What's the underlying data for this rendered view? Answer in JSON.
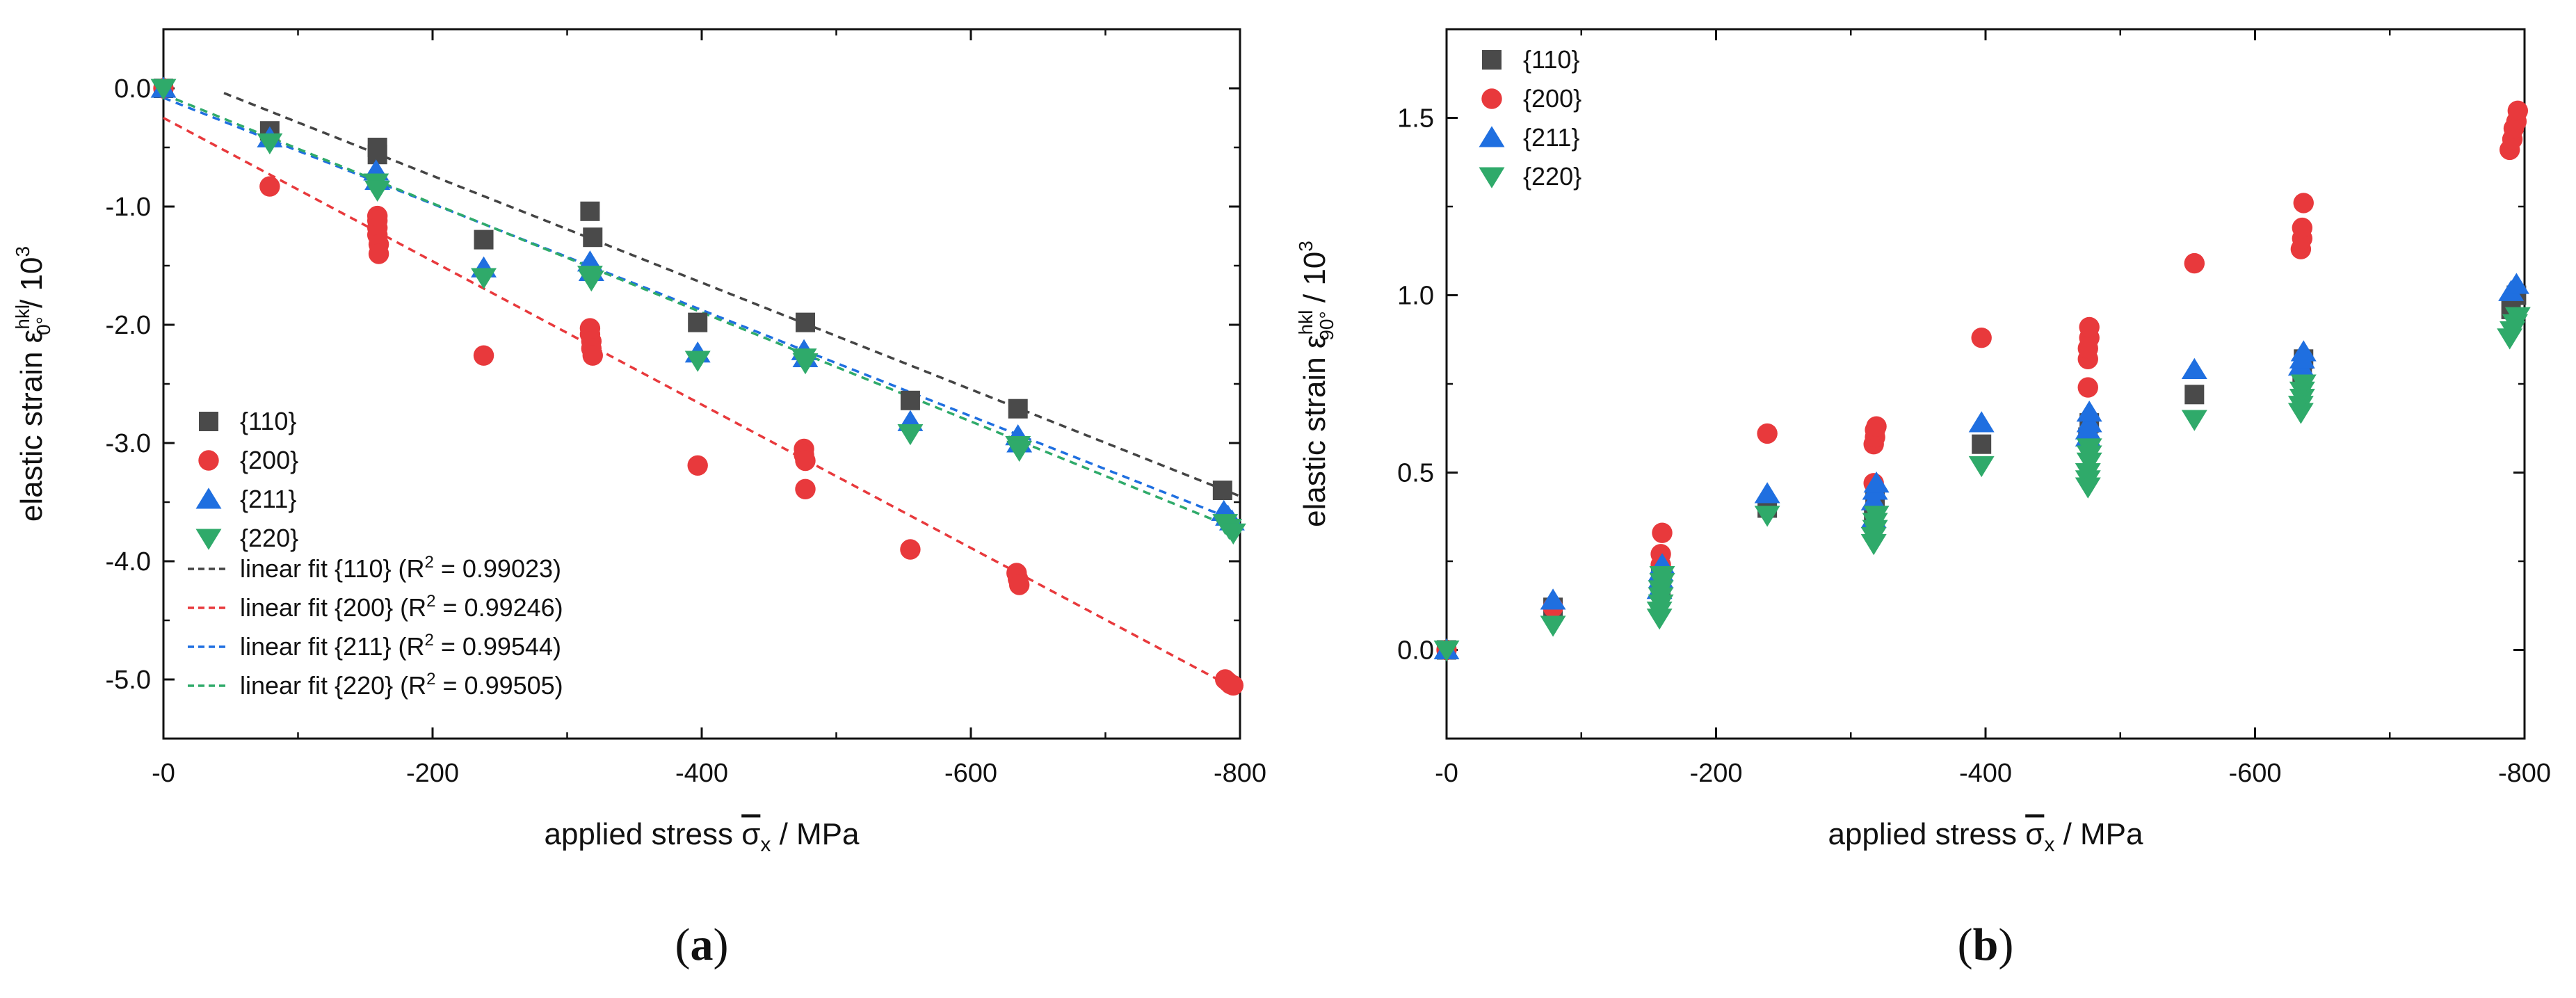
{
  "colors": {
    "s110": "#4a4a4a",
    "s200": "#e8393c",
    "s211": "#1f6fe0",
    "s220": "#2faa6a",
    "fit110": "#444444",
    "fit200": "#e8393c",
    "fit211": "#1f6fe0",
    "fit220": "#2faa6a"
  },
  "chart_data": [
    {
      "type": "scatter",
      "panel": "a",
      "panel_label": "a",
      "title": "",
      "xlabel": {
        "pre": "applied stress ",
        "sym": "σ",
        "sub": "x",
        "post": " / MPa"
      },
      "ylabel": {
        "pre": "elastic strain ε",
        "sup": "hkl",
        "sub": "0°",
        "post": " / 10",
        "exp": "3"
      },
      "xlim": [
        0,
        -800
      ],
      "ylim": [
        -5.5,
        0.5
      ],
      "xticks": [
        0,
        -200,
        -400,
        -600,
        -800
      ],
      "xtick_labels": [
        "-0",
        "-200",
        "-400",
        "-600",
        "-800"
      ],
      "yticks": [
        0,
        -1,
        -2,
        -3,
        -4,
        -5
      ],
      "ytick_labels": [
        "0.0",
        "-1.0",
        "-2.0",
        "-3.0",
        "-4.0",
        "-5.0"
      ],
      "legend_position": "lower-left",
      "series": [
        {
          "name": "{110}",
          "marker": "square",
          "color_key": "s110",
          "points": [
            [
              0,
              0
            ],
            [
              -79,
              -0.36
            ],
            [
              -159,
              -0.5
            ],
            [
              -159,
              -0.56
            ],
            [
              -238,
              -1.28
            ],
            [
              -317,
              -1.04
            ],
            [
              -319,
              -1.26
            ],
            [
              -397,
              -1.98
            ],
            [
              -477,
              -1.98
            ],
            [
              -555,
              -2.64
            ],
            [
              -635,
              -2.71
            ],
            [
              -787,
              -3.4
            ]
          ]
        },
        {
          "name": "{200}",
          "marker": "circle",
          "color_key": "s200",
          "points": [
            [
              0,
              0
            ],
            [
              -79,
              -0.83
            ],
            [
              -159,
              -1.08
            ],
            [
              -159,
              -1.12
            ],
            [
              -159,
              -1.18
            ],
            [
              -159,
              -1.24
            ],
            [
              -160,
              -1.32
            ],
            [
              -160,
              -1.4
            ],
            [
              -238,
              -2.26
            ],
            [
              -317,
              -2.03
            ],
            [
              -317,
              -2.08
            ],
            [
              -318,
              -2.14
            ],
            [
              -318,
              -2.2
            ],
            [
              -319,
              -2.26
            ],
            [
              -397,
              -3.19
            ],
            [
              -476,
              -3.05
            ],
            [
              -476,
              -3.1
            ],
            [
              -477,
              -3.15
            ],
            [
              -477,
              -3.39
            ],
            [
              -555,
              -3.9
            ],
            [
              -634,
              -4.1
            ],
            [
              -635,
              -4.15
            ],
            [
              -636,
              -4.2
            ],
            [
              -789,
              -5.0
            ],
            [
              -791,
              -5.02
            ],
            [
              -793,
              -5.04
            ],
            [
              -795,
              -5.05
            ]
          ]
        },
        {
          "name": "{211}",
          "marker": "triangle-up",
          "color_key": "s211",
          "points": [
            [
              0,
              0
            ],
            [
              -79,
              -0.42
            ],
            [
              -158,
              -0.7
            ],
            [
              -159,
              -0.78
            ],
            [
              -238,
              -1.52
            ],
            [
              -317,
              -1.47
            ],
            [
              -318,
              -1.55
            ],
            [
              -397,
              -2.24
            ],
            [
              -476,
              -2.22
            ],
            [
              -477,
              -2.28
            ],
            [
              -555,
              -2.82
            ],
            [
              -635,
              -2.94
            ],
            [
              -636,
              -3.0
            ],
            [
              -788,
              -3.58
            ],
            [
              -791,
              -3.62
            ],
            [
              -794,
              -3.66
            ]
          ]
        },
        {
          "name": "{220}",
          "marker": "triangle-down",
          "color_key": "s220",
          "points": [
            [
              0,
              0
            ],
            [
              -79,
              -0.46
            ],
            [
              -158,
              -0.8
            ],
            [
              -159,
              -0.86
            ],
            [
              -238,
              -1.6
            ],
            [
              -317,
              -1.58
            ],
            [
              -318,
              -1.62
            ],
            [
              -397,
              -2.3
            ],
            [
              -476,
              -2.28
            ],
            [
              -477,
              -2.32
            ],
            [
              -555,
              -2.92
            ],
            [
              -635,
              -3.02
            ],
            [
              -636,
              -3.06
            ],
            [
              -789,
              -3.68
            ],
            [
              -792,
              -3.72
            ],
            [
              -795,
              -3.76
            ]
          ]
        }
      ],
      "fits": [
        {
          "label": "linear fit {110} (R",
          "sup": "2",
          "tail": " = 0.99023)",
          "color_key": "fit110",
          "x0": -45,
          "y0": -0.04,
          "x1": -800,
          "y1": -3.45
        },
        {
          "label": "linear fit {200} (R",
          "sup": "2",
          "tail": " = 0.99246)",
          "color_key": "fit200",
          "x0": 0,
          "y0": -0.25,
          "x1": -800,
          "y1": -5.1
        },
        {
          "label": "linear fit {211} (R",
          "sup": "2",
          "tail": " = 0.99544)",
          "color_key": "fit211",
          "x0": 0,
          "y0": -0.08,
          "x1": -800,
          "y1": -3.67
        },
        {
          "label": "linear fit {220} (R",
          "sup": "2",
          "tail": " = 0.99505)",
          "color_key": "fit220",
          "x0": 0,
          "y0": -0.05,
          "x1": -800,
          "y1": -3.74
        }
      ]
    },
    {
      "type": "scatter",
      "panel": "b",
      "panel_label": "b",
      "title": "",
      "xlabel": {
        "pre": "applied stress ",
        "sym": "σ",
        "sub": "x",
        "post": " / MPa"
      },
      "ylabel": {
        "pre": "elastic strain ε",
        "sup": "hkl",
        "sub": "90°",
        "post": " / 10",
        "exp": "3"
      },
      "xlim": [
        0,
        -800
      ],
      "ylim": [
        -0.25,
        1.75
      ],
      "xticks": [
        0,
        -200,
        -400,
        -600,
        -800
      ],
      "xtick_labels": [
        "-0",
        "-200",
        "-400",
        "-600",
        "-800"
      ],
      "yticks": [
        0,
        0.5,
        1.0,
        1.5
      ],
      "ytick_labels": [
        "0.0",
        "0.5",
        "1.0",
        "1.5"
      ],
      "legend_position": "top-left",
      "series": [
        {
          "name": "{110}",
          "marker": "square",
          "color_key": "s110",
          "points": [
            [
              0,
              0
            ],
            [
              -79,
              0.12
            ],
            [
              -159,
              0.18
            ],
            [
              -159,
              0.22
            ],
            [
              -238,
              0.4
            ],
            [
              -317,
              0.38
            ],
            [
              -318,
              0.42
            ],
            [
              -397,
              0.58
            ],
            [
              -476,
              0.6
            ],
            [
              -477,
              0.64
            ],
            [
              -555,
              0.72
            ],
            [
              -635,
              0.78
            ],
            [
              -636,
              0.82
            ],
            [
              -790,
              0.96
            ],
            [
              -794,
              1.0
            ]
          ]
        },
        {
          "name": "{200}",
          "marker": "circle",
          "color_key": "s200",
          "points": [
            [
              0,
              0
            ],
            [
              -79,
              0.12
            ],
            [
              -159,
              0.2
            ],
            [
              -159,
              0.24
            ],
            [
              -159,
              0.27
            ],
            [
              -160,
              0.33
            ],
            [
              -238,
              0.61
            ],
            [
              -317,
              0.47
            ],
            [
              -317,
              0.58
            ],
            [
              -318,
              0.6
            ],
            [
              -318,
              0.62
            ],
            [
              -319,
              0.63
            ],
            [
              -397,
              0.88
            ],
            [
              -476,
              0.74
            ],
            [
              -476,
              0.82
            ],
            [
              -476,
              0.85
            ],
            [
              -477,
              0.88
            ],
            [
              -477,
              0.91
            ],
            [
              -555,
              1.09
            ],
            [
              -634,
              1.13
            ],
            [
              -635,
              1.16
            ],
            [
              -635,
              1.19
            ],
            [
              -636,
              1.26
            ],
            [
              -789,
              1.41
            ],
            [
              -791,
              1.44
            ],
            [
              -792,
              1.47
            ],
            [
              -794,
              1.49
            ],
            [
              -795,
              1.52
            ]
          ]
        },
        {
          "name": "{211}",
          "marker": "triangle-up",
          "color_key": "s211",
          "points": [
            [
              0,
              0
            ],
            [
              -79,
              0.14
            ],
            [
              -158,
              0.17
            ],
            [
              -159,
              0.2
            ],
            [
              -159,
              0.22
            ],
            [
              -160,
              0.24
            ],
            [
              -238,
              0.44
            ],
            [
              -317,
              0.37
            ],
            [
              -317,
              0.42
            ],
            [
              -318,
              0.45
            ],
            [
              -319,
              0.47
            ],
            [
              -397,
              0.64
            ],
            [
              -476,
              0.6
            ],
            [
              -476,
              0.62
            ],
            [
              -477,
              0.64
            ],
            [
              -477,
              0.67
            ],
            [
              -555,
              0.79
            ],
            [
              -634,
              0.8
            ],
            [
              -635,
              0.82
            ],
            [
              -636,
              0.84
            ],
            [
              -790,
              1.01
            ],
            [
              -794,
              1.03
            ]
          ]
        },
        {
          "name": "{220}",
          "marker": "triangle-down",
          "color_key": "s220",
          "points": [
            [
              0,
              0
            ],
            [
              -79,
              0.07
            ],
            [
              -158,
              0.09
            ],
            [
              -158,
              0.11
            ],
            [
              -159,
              0.13
            ],
            [
              -159,
              0.15
            ],
            [
              -159,
              0.17
            ],
            [
              -160,
              0.19
            ],
            [
              -160,
              0.21
            ],
            [
              -238,
              0.38
            ],
            [
              -317,
              0.3
            ],
            [
              -317,
              0.32
            ],
            [
              -318,
              0.34
            ],
            [
              -318,
              0.36
            ],
            [
              -319,
              0.38
            ],
            [
              -397,
              0.52
            ],
            [
              -476,
              0.46
            ],
            [
              -476,
              0.48
            ],
            [
              -476,
              0.5
            ],
            [
              -477,
              0.53
            ],
            [
              -477,
              0.55
            ],
            [
              -477,
              0.57
            ],
            [
              -555,
              0.65
            ],
            [
              -634,
              0.67
            ],
            [
              -634,
              0.69
            ],
            [
              -635,
              0.71
            ],
            [
              -635,
              0.73
            ],
            [
              -636,
              0.75
            ],
            [
              -789,
              0.88
            ],
            [
              -791,
              0.9
            ],
            [
              -793,
              0.92
            ],
            [
              -795,
              0.94
            ]
          ]
        }
      ]
    }
  ]
}
